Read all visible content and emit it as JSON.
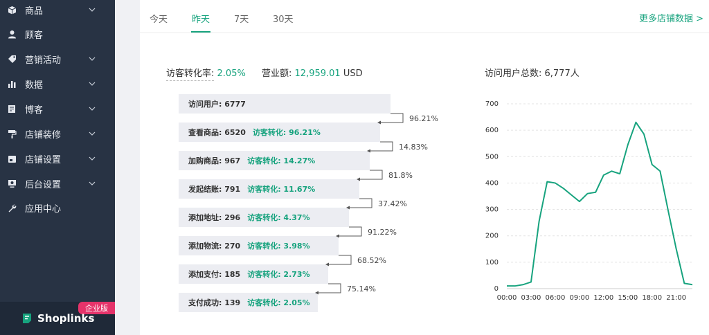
{
  "sidebar": {
    "items": [
      {
        "label": "商品",
        "icon": "box-icon",
        "has_chevron": true
      },
      {
        "label": "顾客",
        "icon": "user-icon",
        "has_chevron": false
      },
      {
        "label": "营销活动",
        "icon": "tag-icon",
        "has_chevron": true
      },
      {
        "label": "数据",
        "icon": "bar-chart-icon",
        "has_chevron": true
      },
      {
        "label": "博客",
        "icon": "blog-edit-icon",
        "has_chevron": true
      },
      {
        "label": "店铺装修",
        "icon": "paint-roller-icon",
        "has_chevron": true
      },
      {
        "label": "店铺设置",
        "icon": "store-settings-icon",
        "has_chevron": true
      },
      {
        "label": "后台设置",
        "icon": "monitor-settings-icon",
        "has_chevron": true
      },
      {
        "label": "应用中心",
        "icon": "wrench-icon",
        "has_chevron": false
      }
    ],
    "badge": "企业版",
    "brand": "Shoplinks"
  },
  "tabs": {
    "items": [
      "今天",
      "昨天",
      "7天",
      "30天"
    ],
    "active": "昨天",
    "more_link": "更多店铺数据 >"
  },
  "stats": {
    "conversion_label": "访客转化率:",
    "conversion_value": "2.05%",
    "revenue_label": "营业额:",
    "revenue_value": "12,959.01",
    "revenue_unit": "USD",
    "total_visitors": "访问用户总数: 6,777人"
  },
  "funnel": {
    "steps": [
      {
        "label": "访问用户: 6777",
        "conv": ""
      },
      {
        "label": "查看商品: 6520",
        "conv": "访客转化: 96.21%"
      },
      {
        "label": "加购商品: 967",
        "conv": "访客转化: 14.27%"
      },
      {
        "label": "发起结账: 791",
        "conv": "访客转化: 11.67%"
      },
      {
        "label": "添加地址: 296",
        "conv": "访客转化: 4.37%"
      },
      {
        "label": "添加物流: 270",
        "conv": "访客转化: 3.98%"
      },
      {
        "label": "添加支付: 185",
        "conv": "访客转化: 2.73%"
      },
      {
        "label": "支付成功: 139",
        "conv": "访客转化: 2.05%"
      }
    ],
    "rates": [
      "96.21%",
      "14.83%",
      "81.8%",
      "37.42%",
      "91.22%",
      "68.52%",
      "75.14%"
    ]
  },
  "colors": {
    "accent": "#17a37e",
    "sidebar_bg": "#283344",
    "badge": "#e5336a"
  },
  "chart_data": {
    "type": "line",
    "x_ticks": [
      "00:00",
      "03:00",
      "06:00",
      "09:00",
      "12:00",
      "15:00",
      "18:00",
      "21:00"
    ],
    "y_ticks": [
      0,
      100,
      200,
      300,
      400,
      500,
      600,
      700
    ],
    "ylim": [
      0,
      700
    ],
    "xlim": [
      0,
      23
    ],
    "grid": true,
    "series": [
      {
        "x": [
          0,
          1,
          2,
          3,
          4,
          5,
          6,
          7,
          8,
          9,
          10,
          11,
          12,
          13,
          14,
          15,
          16,
          17,
          18,
          19,
          20,
          21,
          22,
          23
        ],
        "values": [
          10,
          10,
          15,
          25,
          255,
          405,
          400,
          380,
          355,
          330,
          360,
          365,
          430,
          445,
          435,
          545,
          630,
          585,
          470,
          445,
          295,
          150,
          20,
          15
        ]
      }
    ]
  }
}
